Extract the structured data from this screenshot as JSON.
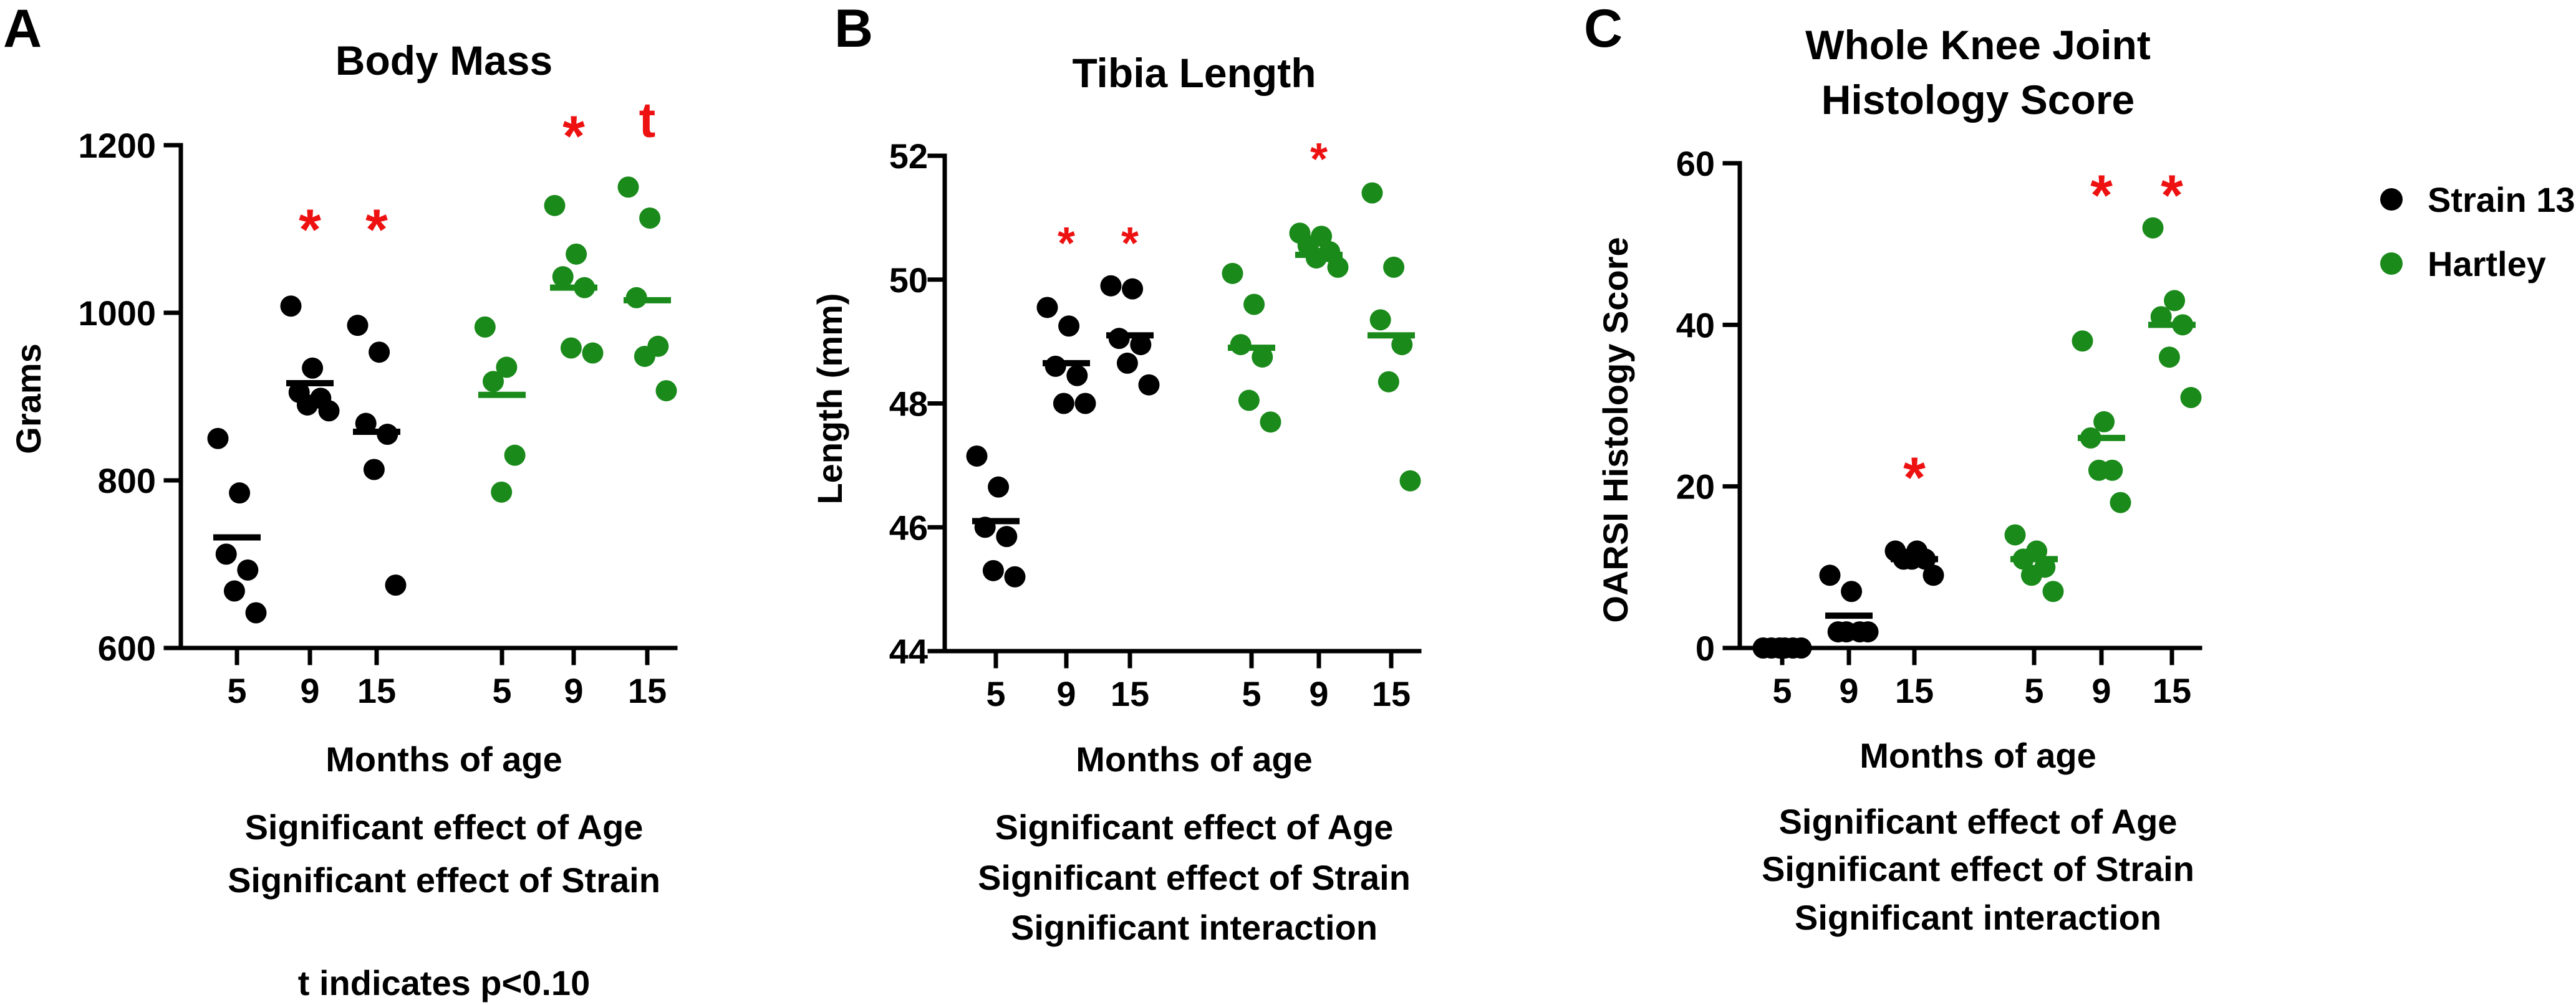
{
  "colors": {
    "strain13": "#000000",
    "hartley": "#1a8a1a",
    "sig": "#ee1111"
  },
  "legend": [
    {
      "name": "Strain 13",
      "color": "#000000"
    },
    {
      "name": "Hartley",
      "color": "#1a8a1a"
    }
  ],
  "footnote": "t indicates p<0.10",
  "chart_data": [
    {
      "type": "scatter",
      "panel": "A",
      "title": "Body Mass",
      "ylabel": "Grams",
      "xlabel": "Months of age",
      "ylim": [
        600,
        1200
      ],
      "yticks": [
        600,
        800,
        1000,
        1200
      ],
      "categories": [
        "5",
        "9",
        "15",
        "5",
        "9",
        "15"
      ],
      "notes": [
        "Significant effect of Age",
        "Significant effect of Strain"
      ],
      "groups": [
        {
          "strain": "Strain 13",
          "age": "5",
          "values": [
            850,
            785,
            712,
            693,
            668,
            642
          ],
          "mean": 732,
          "sig": ""
        },
        {
          "strain": "Strain 13",
          "age": "9",
          "values": [
            1008,
            934,
            905,
            898,
            890,
            883
          ],
          "mean": 916,
          "sig": "*"
        },
        {
          "strain": "Strain 13",
          "age": "15",
          "values": [
            985,
            953,
            868,
            855,
            813,
            675
          ],
          "mean": 858,
          "sig": "*"
        },
        {
          "strain": "Hartley",
          "age": "5",
          "values": [
            983,
            935,
            918,
            830,
            786
          ],
          "mean": 902,
          "sig": ""
        },
        {
          "strain": "Hartley",
          "age": "9",
          "values": [
            1128,
            1070,
            1043,
            1030,
            958,
            952
          ],
          "mean": 1030,
          "sig": "*"
        },
        {
          "strain": "Hartley",
          "age": "15",
          "values": [
            1150,
            1113,
            1018,
            960,
            948,
            907
          ],
          "mean": 1015,
          "sig": "t"
        }
      ]
    },
    {
      "type": "scatter",
      "panel": "B",
      "title": "Tibia Length",
      "ylabel": "Length (mm)",
      "xlabel": "Months of age",
      "ylim": [
        44,
        52
      ],
      "yticks": [
        44,
        46,
        48,
        50,
        52
      ],
      "categories": [
        "5",
        "9",
        "15",
        "5",
        "9",
        "15"
      ],
      "notes": [
        "Significant effect of Age",
        "Significant effect of Strain",
        "Significant interaction"
      ],
      "groups": [
        {
          "strain": "Strain 13",
          "age": "5",
          "values": [
            47.15,
            46.65,
            46.0,
            45.85,
            45.3,
            45.2
          ],
          "mean": 46.1,
          "sig": ""
        },
        {
          "strain": "Strain 13",
          "age": "9",
          "values": [
            49.55,
            49.25,
            48.6,
            48.45,
            48.0,
            48.0
          ],
          "mean": 48.65,
          "sig": "*"
        },
        {
          "strain": "Strain 13",
          "age": "15",
          "values": [
            49.9,
            49.85,
            49.05,
            48.95,
            48.65,
            48.3
          ],
          "mean": 49.1,
          "sig": "*"
        },
        {
          "strain": "Hartley",
          "age": "5",
          "values": [
            50.1,
            49.6,
            48.95,
            48.75,
            48.05,
            47.7
          ],
          "mean": 48.9,
          "sig": ""
        },
        {
          "strain": "Hartley",
          "age": "9",
          "values": [
            50.75,
            50.7,
            50.55,
            50.45,
            50.35,
            50.2
          ],
          "mean": 50.4,
          "sig": "*"
        },
        {
          "strain": "Hartley",
          "age": "15",
          "values": [
            51.4,
            50.2,
            49.35,
            48.95,
            48.35,
            46.75
          ],
          "mean": 49.1,
          "sig": ""
        }
      ]
    },
    {
      "type": "scatter",
      "panel": "C",
      "title": [
        "Whole Knee Joint",
        "Histology Score"
      ],
      "ylabel": "OARSI Histology Score",
      "xlabel": "Months of age",
      "ylim": [
        0,
        60
      ],
      "yticks": [
        0,
        20,
        40,
        60
      ],
      "categories": [
        "5",
        "9",
        "15",
        "5",
        "9",
        "15"
      ],
      "notes": [
        "Significant effect of Age",
        "Significant effect of Strain",
        "Significant interaction"
      ],
      "groups": [
        {
          "strain": "Strain 13",
          "age": "5",
          "values": [
            0,
            0,
            0,
            0,
            0,
            0
          ],
          "mean": 0,
          "sig": ""
        },
        {
          "strain": "Strain 13",
          "age": "9",
          "values": [
            9,
            7,
            2,
            2,
            2,
            2
          ],
          "mean": 4,
          "sig": ""
        },
        {
          "strain": "Strain 13",
          "age": "15",
          "values": [
            12,
            12,
            11,
            11,
            11,
            9
          ],
          "mean": 11,
          "sig": "*"
        },
        {
          "strain": "Hartley",
          "age": "5",
          "values": [
            14,
            12,
            11,
            10,
            9,
            7
          ],
          "mean": 11,
          "sig": ""
        },
        {
          "strain": "Hartley",
          "age": "9",
          "values": [
            38,
            28,
            26,
            22,
            22,
            18
          ],
          "mean": 26,
          "sig": "*"
        },
        {
          "strain": "Hartley",
          "age": "15",
          "values": [
            52,
            43,
            41,
            40,
            36,
            31
          ],
          "mean": 40,
          "sig": "*"
        }
      ]
    }
  ]
}
